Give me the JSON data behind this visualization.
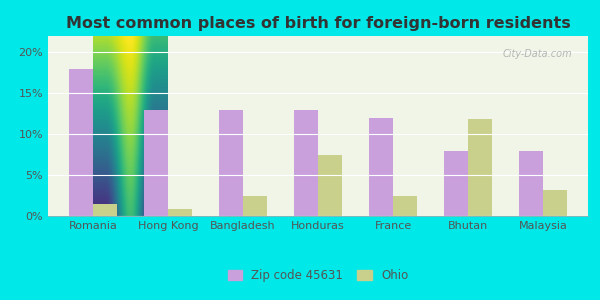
{
  "title": "Most common places of birth for foreign-born residents",
  "categories": [
    "Romania",
    "Hong Kong",
    "Bangladesh",
    "Honduras",
    "France",
    "Bhutan",
    "Malaysia"
  ],
  "zip_values": [
    18.0,
    13.0,
    13.0,
    13.0,
    12.0,
    8.0,
    8.0
  ],
  "ohio_values": [
    1.5,
    0.8,
    2.5,
    7.5,
    2.5,
    11.8,
    3.2
  ],
  "zip_color": "#c9a0dc",
  "ohio_color": "#c8d08c",
  "background_outer": "#00e8e8",
  "background_inner_top": "#f0f5e8",
  "background_inner_bottom": "#d0e8cc",
  "ylim": [
    0,
    22
  ],
  "yticks": [
    0,
    5,
    10,
    15,
    20
  ],
  "ytick_labels": [
    "0%",
    "5%",
    "10%",
    "15%",
    "20%"
  ],
  "legend_zip": "Zip code 45631",
  "legend_ohio": "Ohio",
  "bar_width": 0.32,
  "title_fontsize": 11.5,
  "tick_fontsize": 8,
  "legend_fontsize": 8.5
}
